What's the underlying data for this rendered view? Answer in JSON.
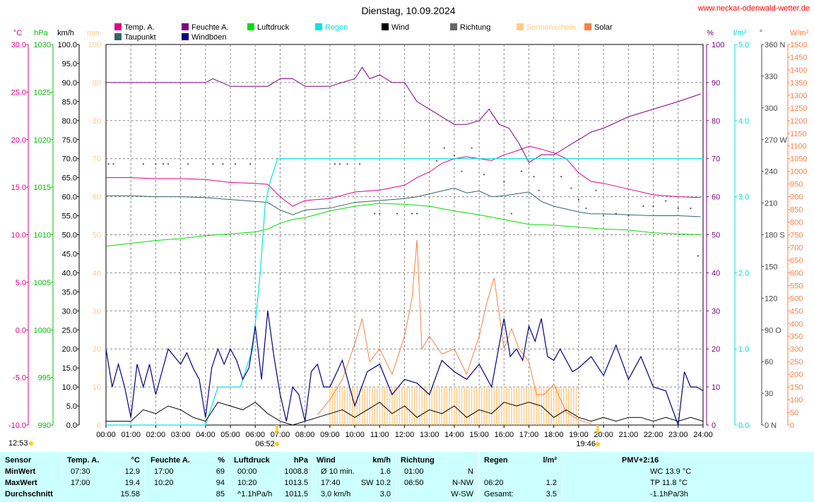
{
  "page": {
    "title": "Dienstag, 10.09.2024",
    "site": "www.neckar-odenwald-wetter.de"
  },
  "chart_data": {
    "type": "line",
    "title": "Dienstag, 10.09.2024",
    "x_label": "Uhrzeit",
    "x_ticks": [
      "00:00",
      "01:00",
      "02:00",
      "03:00",
      "04:00",
      "05:00",
      "06:00",
      "07:00",
      "08:00",
      "09:00",
      "10:00",
      "11:00",
      "12:00",
      "13:00",
      "14:00",
      "15:00",
      "16:00",
      "17:00",
      "18:00",
      "19:00",
      "20:00",
      "21:00",
      "22:00",
      "23:00",
      "24:00"
    ],
    "axes": {
      "temp": {
        "unit": "°C",
        "min": -10,
        "max": 30,
        "ticks": [
          "30.0",
          "25.0",
          "20.0",
          "15.0",
          "10.0",
          "5.0",
          "0.0",
          "-5.0",
          "-10.0"
        ],
        "color": "#e0008a"
      },
      "pressure": {
        "unit": "hPa",
        "min": 990,
        "max": 1030,
        "ticks": [
          "1030",
          "1025",
          "1020",
          "1015",
          "1010",
          "1005",
          "1000",
          "995",
          "990"
        ],
        "color": "#00c000"
      },
      "wind": {
        "unit": "km/h",
        "min": 0,
        "max": 100,
        "ticks": [
          "100.0",
          "95.0",
          "90.0",
          "85.0",
          "80.0",
          "75.0",
          "70.0",
          "65.0",
          "60.0",
          "55.0",
          "50.0",
          "45.0",
          "40.0",
          "35.0",
          "30.0",
          "25.0",
          "20.0",
          "15.0",
          "10.0",
          "5.0",
          "0.0"
        ],
        "color": "#000000"
      },
      "sunshine": {
        "unit": "min",
        "min": 0,
        "max": 100,
        "ticks": [
          "100",
          "90",
          "80",
          "70",
          "60",
          "50",
          "40",
          "30",
          "20",
          "10",
          "0"
        ],
        "color": "#ffcc88"
      },
      "humidity": {
        "unit": "%",
        "min": 0,
        "max": 100,
        "ticks": [
          "100",
          "90",
          "80",
          "70",
          "60",
          "50",
          "40",
          "30",
          "20",
          "10",
          "0"
        ],
        "color": "#800080"
      },
      "rain": {
        "unit": "l/m²",
        "min": 0,
        "max": 5,
        "ticks": [
          "5.0",
          "4.0",
          "3.0",
          "2.0",
          "1.0",
          "0.0"
        ],
        "color": "#00dddd"
      },
      "direction": {
        "unit": "°",
        "min": 0,
        "max": 360,
        "ticks": [
          "360 N",
          "330",
          "300",
          "270 W",
          "240",
          "210",
          "180 S",
          "150",
          "120",
          "90 O",
          "60",
          "30",
          "0 N"
        ],
        "color": "#444444"
      },
      "solar": {
        "unit": "W/m²",
        "min": 0,
        "max": 1500,
        "ticks": [
          "1500",
          "1450",
          "1400",
          "1350",
          "1300",
          "1250",
          "1200",
          "1150",
          "1100",
          "1050",
          "1000",
          "950",
          "900",
          "850",
          "800",
          "750",
          "700",
          "650",
          "600",
          "550",
          "500",
          "450",
          "400",
          "350",
          "300",
          "250",
          "200",
          "150",
          "100",
          "50",
          "0"
        ],
        "color": "#ff7f40"
      }
    },
    "legend": [
      {
        "name": "Temp. A.",
        "color": "#e0008a"
      },
      {
        "name": "Taupunkt",
        "color": "#336666"
      },
      {
        "name": "Feuchte A.",
        "color": "#800080"
      },
      {
        "name": "Windböen",
        "color": "#000080"
      },
      {
        "name": "Luftdruck",
        "color": "#00e000"
      },
      {
        "name": "Regen",
        "color": "#00e5e5"
      },
      {
        "name": "Wind",
        "color": "#000000"
      },
      {
        "name": "Richtung",
        "color": "#666666"
      },
      {
        "name": "Sonnenschein",
        "color": "#ffcc88"
      },
      {
        "name": "Solar",
        "color": "#ff7f40"
      }
    ],
    "series": [
      {
        "name": "Temp. A.",
        "axis": "temp",
        "x": [
          0,
          1,
          2,
          3,
          4,
          5,
          6,
          6.5,
          7,
          7.5,
          8,
          9,
          10,
          11,
          12,
          12.5,
          13,
          13.5,
          14,
          14.5,
          15,
          15.5,
          16,
          16.5,
          17,
          17.5,
          18,
          18.5,
          19,
          19.5,
          20,
          21,
          22,
          23,
          23.9
        ],
        "y": [
          16.0,
          16.0,
          15.9,
          15.9,
          15.8,
          15.5,
          15.4,
          15.3,
          14.0,
          13.0,
          13.6,
          13.8,
          14.5,
          14.7,
          15.2,
          16.0,
          16.6,
          17.5,
          18.0,
          18.2,
          18.0,
          17.8,
          18.4,
          18.8,
          19.3,
          19.0,
          18.6,
          18.0,
          16.5,
          15.6,
          15.4,
          14.8,
          14.2,
          14.0,
          13.9
        ]
      },
      {
        "name": "Taupunkt",
        "axis": "temp",
        "x": [
          0,
          1,
          2,
          3,
          4,
          5,
          6,
          6.5,
          7,
          7.5,
          8,
          9,
          10,
          11,
          12,
          12.5,
          13,
          13.5,
          14,
          14.5,
          15,
          15.5,
          16,
          16.5,
          17,
          17.5,
          18,
          18.5,
          19,
          19.5,
          20,
          21,
          22,
          23,
          23.9
        ],
        "y": [
          14.1,
          14.1,
          14.0,
          14.0,
          13.9,
          13.7,
          13.5,
          13.4,
          12.6,
          12.1,
          12.6,
          12.8,
          13.4,
          13.6,
          13.8,
          14.0,
          14.3,
          14.6,
          14.9,
          14.4,
          14.6,
          14.0,
          14.1,
          14.3,
          14.5,
          13.5,
          13.0,
          12.7,
          12.4,
          12.2,
          12.2,
          12.1,
          12.0,
          12.0,
          11.9
        ]
      },
      {
        "name": "Feuchte A.",
        "axis": "humidity",
        "x": [
          0,
          1,
          2,
          3,
          4,
          4.3,
          5,
          6,
          6.5,
          7,
          7.5,
          8,
          9,
          10,
          10.3,
          10.6,
          11,
          11.5,
          12,
          12.5,
          13,
          13.5,
          14,
          14.5,
          15,
          15.4,
          15.8,
          16.2,
          16.6,
          17,
          17.5,
          18,
          18.5,
          19,
          19.5,
          20,
          21,
          22,
          23,
          23.9
        ],
        "y": [
          90,
          90,
          90,
          90,
          90,
          91,
          89,
          89,
          89,
          91,
          91,
          89,
          89,
          91,
          94,
          91,
          92,
          90,
          90,
          85,
          83,
          81,
          79,
          79,
          80,
          83,
          79,
          78,
          74,
          69,
          71,
          71,
          73,
          75,
          77,
          78,
          81,
          83,
          85,
          87
        ]
      },
      {
        "name": "Luftdruck",
        "axis": "pressure",
        "x": [
          0,
          1,
          2,
          3,
          4,
          5,
          6,
          6.5,
          7,
          7.5,
          8,
          9,
          10,
          11,
          12,
          13,
          14,
          15,
          16,
          17,
          18,
          19,
          20,
          21,
          22,
          23,
          23.9
        ],
        "y": [
          1008.8,
          1009.1,
          1009.4,
          1009.6,
          1009.9,
          1010.1,
          1010.3,
          1010.6,
          1011.2,
          1011.6,
          1011.8,
          1012.5,
          1013.0,
          1013.3,
          1013.2,
          1013.0,
          1012.5,
          1012.1,
          1011.6,
          1011.1,
          1011.0,
          1010.8,
          1010.6,
          1010.5,
          1010.2,
          1010.1,
          1010.0
        ]
      },
      {
        "name": "Regen",
        "axis": "rain",
        "x": [
          0,
          4.0,
          4.5,
          5.4,
          5.9,
          6.2,
          6.4,
          6.6,
          6.9,
          7.0,
          24.0
        ],
        "y": [
          0,
          0,
          0.5,
          0.5,
          1.0,
          2.0,
          2.9,
          3.2,
          3.5,
          3.5,
          3.5
        ]
      },
      {
        "name": "Windböen",
        "axis": "wind",
        "x": [
          0,
          0.25,
          0.5,
          0.75,
          1.0,
          1.25,
          1.5,
          1.75,
          2.0,
          2.25,
          2.5,
          3.0,
          3.25,
          3.5,
          3.75,
          4.0,
          4.25,
          4.5,
          4.75,
          5.0,
          5.25,
          5.5,
          5.75,
          6.0,
          6.25,
          6.5,
          6.75,
          7.0,
          7.25,
          7.5,
          7.75,
          8.0,
          8.25,
          8.5,
          8.75,
          9.0,
          9.5,
          10.0,
          10.5,
          11.0,
          11.5,
          12.0,
          12.5,
          13.0,
          13.5,
          14.0,
          14.5,
          15.0,
          15.5,
          16.0,
          16.25,
          16.5,
          16.75,
          17.0,
          17.25,
          17.5,
          17.75,
          18.0,
          18.25,
          18.5,
          18.75,
          19.0,
          19.5,
          20.0,
          20.5,
          21.0,
          21.5,
          22.0,
          22.5,
          23.0,
          23.25,
          23.5,
          23.75,
          24.0
        ],
        "y": [
          20,
          10,
          16,
          10,
          2,
          16,
          10,
          16,
          8,
          14,
          20,
          16,
          19,
          15,
          12,
          2,
          15,
          20,
          16,
          20,
          17,
          12,
          15,
          26,
          12,
          30,
          18,
          8,
          1,
          10,
          8,
          1,
          14,
          16,
          10,
          10,
          17,
          5,
          14,
          16,
          8,
          12,
          11,
          8,
          17,
          14,
          12,
          16,
          10,
          28,
          18,
          20,
          17,
          26,
          22,
          28,
          18,
          17,
          20,
          17,
          14,
          15,
          18,
          13,
          21,
          12,
          18,
          10,
          9,
          0,
          14,
          10,
          10,
          9
        ]
      },
      {
        "name": "Wind",
        "axis": "wind",
        "x": [
          0,
          0.5,
          1.0,
          1.5,
          2.0,
          2.5,
          3.0,
          3.5,
          4.0,
          4.5,
          5.0,
          5.5,
          6.0,
          6.5,
          7.0,
          7.5,
          8.0,
          8.5,
          9.0,
          9.5,
          10.0,
          10.5,
          11.0,
          11.5,
          12.0,
          12.5,
          13.0,
          13.5,
          14.0,
          14.5,
          15.0,
          15.5,
          16.0,
          16.5,
          17.0,
          17.5,
          18.0,
          18.5,
          19.0,
          19.5,
          20.0,
          20.5,
          21.0,
          21.5,
          22.0,
          22.5,
          23.0,
          23.5,
          24.0
        ],
        "y": [
          1,
          1,
          1,
          4,
          3,
          5,
          4,
          2,
          1,
          6,
          5,
          4,
          6,
          3,
          1,
          0,
          1,
          2,
          3,
          4,
          2,
          4,
          6,
          3,
          5,
          2,
          4,
          3,
          5,
          2,
          4,
          3,
          6,
          5,
          6,
          5,
          2,
          4,
          2,
          1,
          2,
          1,
          2,
          2,
          1,
          2,
          1,
          2,
          1
        ]
      },
      {
        "name": "Solar",
        "axis": "solar",
        "x": [
          8.5,
          9,
          9.5,
          10,
          10.3,
          10.6,
          11,
          11.5,
          12,
          12.3,
          12.5,
          12.7,
          13,
          13.5,
          14,
          14.5,
          15,
          15.3,
          15.6,
          16,
          16.3,
          16.6,
          17,
          17.3,
          17.6,
          18,
          18.5,
          19,
          19.5
        ],
        "y": [
          40,
          100,
          180,
          320,
          420,
          250,
          300,
          200,
          350,
          500,
          730,
          300,
          350,
          280,
          300,
          200,
          350,
          480,
          580,
          300,
          380,
          300,
          250,
          120,
          120,
          160,
          50,
          20,
          5
        ]
      },
      {
        "name": "Sonnenschein",
        "axis": "sunshine",
        "x": [
          9,
          10,
          11,
          12,
          13,
          14,
          15,
          16,
          17,
          18,
          19
        ],
        "y": [
          10,
          10,
          10,
          10,
          10,
          10,
          10,
          10,
          10,
          10,
          0
        ]
      },
      {
        "name": "Richtung",
        "axis": "direction",
        "x": [
          0.1,
          0.3,
          1.5,
          2.0,
          2.3,
          2.5,
          3.3,
          4.3,
          4.7,
          5.2,
          5.8,
          9.2,
          9.4,
          9.7,
          10.2,
          10.8,
          11.0,
          11.7,
          12.3,
          12.5,
          13.3,
          13.6,
          14.0,
          14.3,
          14.7,
          15.2,
          16.0,
          16.3,
          16.7,
          17.2,
          17.4,
          18.3,
          18.7,
          19.0,
          19.3,
          19.7,
          20.0,
          20.5,
          21.0,
          21.6,
          22.0,
          22.5,
          23.0,
          23.5,
          23.8
        ],
        "y": [
          247,
          247,
          247,
          247,
          247,
          247,
          247,
          247,
          247,
          247,
          247,
          247,
          247,
          247,
          247,
          200,
          200,
          200,
          200,
          200,
          250,
          262,
          255,
          240,
          262,
          237,
          230,
          200,
          240,
          235,
          222,
          235,
          224,
          213,
          205,
          222,
          198,
          200,
          198,
          207,
          207,
          212,
          205,
          205,
          160
        ]
      }
    ]
  },
  "markers": {
    "sunrise": "06:52",
    "sunset": "19:46",
    "time": "12:53"
  },
  "table": {
    "headers": [
      "Sensor",
      "Temp. A.",
      "°C",
      "Feuchte A.",
      "%",
      "Luftdruck",
      "hPa",
      "Wind",
      "km/h",
      "Richtung",
      "Regen",
      "l/m²",
      "PMV+2:16"
    ],
    "rows": [
      {
        "label": "MinWert",
        "temp_t": "07:30",
        "temp_v": "12.9",
        "hum_t": "17:00",
        "hum_v": "69",
        "pres_t": "00:00",
        "pres_v": "1008.8",
        "wind_t": "Ø 10 min.",
        "wind_v": "1.6",
        "dir_t": "01:00",
        "dir_v": "N",
        "rain_t": "",
        "rain_v": "",
        "pmv": "WC 13.9 °C"
      },
      {
        "label": "MaxWert",
        "temp_t": "17:00",
        "temp_v": "19.4",
        "hum_t": "10:20",
        "hum_v": "94",
        "pres_t": "10:20",
        "pres_v": "1013.5",
        "wind_t": "17:40",
        "wind_v": "SW 10.2",
        "dir_t": "06:50",
        "dir_v": "N-NW",
        "rain_t": "06:20",
        "rain_v": "1.2",
        "pmv": "TP 11.8 °C"
      },
      {
        "label": "Durchschnitt",
        "temp_t": "",
        "temp_v": "15.58",
        "hum_t": "",
        "hum_v": "85",
        "pres_t": "^1.1hPa/h",
        "pres_v": "1011.5",
        "wind_t": "3,0 km/h",
        "wind_v": "3.0",
        "dir_t": "",
        "dir_v": "W-SW",
        "rain_t": "Gesamt:",
        "rain_v": "3.5",
        "pmv": "-1.1hPa/3h"
      }
    ]
  }
}
